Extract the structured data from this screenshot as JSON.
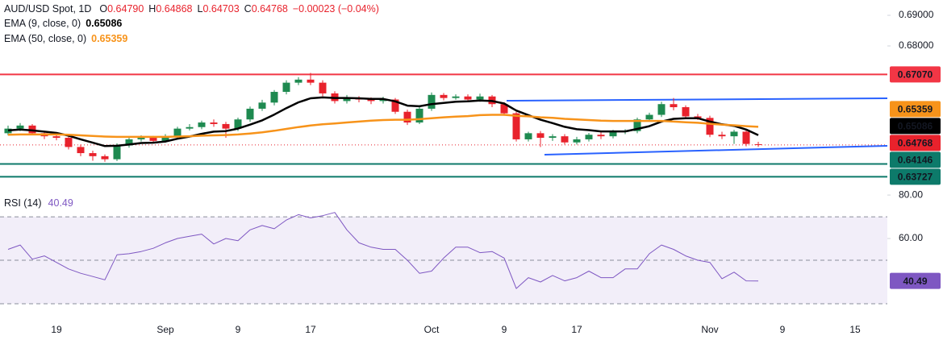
{
  "chart_data": [
    {
      "type": "candlestick",
      "title": "AUD/USD Spot, 1D",
      "header": [
        {
          "key": "O",
          "text": "0.64790"
        },
        {
          "key": "H",
          "text": "0.64868"
        },
        {
          "key": "L",
          "text": "0.64703"
        },
        {
          "key": "C",
          "text": "0.64768"
        }
      ],
      "change": "−0.00023 (−0.04%)",
      "categories": [
        null,
        null,
        null,
        null,
        "19",
        null,
        null,
        null,
        null,
        null,
        null,
        null,
        null,
        "Sep",
        null,
        null,
        null,
        null,
        null,
        "9",
        null,
        null,
        null,
        null,
        null,
        "17",
        null,
        null,
        null,
        null,
        null,
        null,
        null,
        null,
        null,
        "Oct",
        null,
        null,
        null,
        null,
        null,
        "9",
        null,
        null,
        null,
        null,
        null,
        "17",
        null,
        null,
        null,
        null,
        null,
        null,
        null,
        null,
        null,
        null,
        "Nov",
        null,
        null,
        null,
        null,
        null,
        "9",
        null,
        null,
        null,
        null,
        null,
        "15"
      ],
      "open": [
        0.6515,
        0.653,
        0.654,
        0.6515,
        0.6505,
        0.65,
        0.647,
        0.645,
        0.644,
        0.643,
        0.6475,
        0.6495,
        0.65,
        0.649,
        0.6505,
        0.653,
        0.6535,
        0.655,
        0.6545,
        0.653,
        0.656,
        0.6595,
        0.6615,
        0.665,
        0.668,
        0.669,
        0.668,
        0.6645,
        0.662,
        0.663,
        0.6625,
        0.662,
        0.6625,
        0.6585,
        0.655,
        0.6595,
        0.664,
        0.663,
        0.6635,
        0.6625,
        0.6635,
        0.661,
        0.658,
        0.6495,
        0.6515,
        0.65,
        0.6505,
        0.6485,
        0.6495,
        0.651,
        0.6505,
        0.652,
        0.6522,
        0.656,
        0.6575,
        0.661,
        0.66,
        0.657,
        0.6565,
        0.651,
        0.6505,
        0.652,
        0.6479,
        null,
        null,
        null,
        null,
        null,
        null,
        null,
        null
      ],
      "high": [
        0.654,
        0.6548,
        0.6545,
        0.6522,
        0.6512,
        0.6506,
        0.6478,
        0.6458,
        0.6446,
        0.6482,
        0.65,
        0.6508,
        0.6506,
        0.6512,
        0.6536,
        0.6545,
        0.6556,
        0.656,
        0.6552,
        0.6566,
        0.6602,
        0.6624,
        0.6656,
        0.6688,
        0.6698,
        0.6712,
        0.6688,
        0.6652,
        0.664,
        0.6636,
        0.6632,
        0.6634,
        0.663,
        0.6592,
        0.6602,
        0.6648,
        0.6646,
        0.6642,
        0.6642,
        0.6644,
        0.664,
        0.6616,
        0.6585,
        0.652,
        0.6522,
        0.6512,
        0.6512,
        0.6503,
        0.6516,
        0.6518,
        0.6526,
        0.6528,
        0.6566,
        0.6582,
        0.6618,
        0.663,
        0.6606,
        0.6578,
        0.6572,
        0.652,
        0.6526,
        0.6524,
        0.64868,
        null,
        null,
        null,
        null,
        null,
        null,
        null,
        null
      ],
      "low": [
        0.6508,
        0.6522,
        0.6508,
        0.6496,
        0.6492,
        0.6462,
        0.644,
        0.6425,
        0.6422,
        0.6424,
        0.6468,
        0.6488,
        0.6482,
        0.6484,
        0.6498,
        0.6524,
        0.6528,
        0.6536,
        0.65,
        0.6522,
        0.6552,
        0.6588,
        0.6606,
        0.6642,
        0.6672,
        0.6672,
        0.6636,
        0.6612,
        0.6612,
        0.6616,
        0.661,
        0.6612,
        0.6578,
        0.6542,
        0.6545,
        0.6588,
        0.6622,
        0.6624,
        0.6618,
        0.6618,
        0.66,
        0.6572,
        0.6488,
        0.6488,
        0.647,
        0.649,
        0.6478,
        0.6478,
        0.6488,
        0.6496,
        0.6498,
        0.6512,
        0.6515,
        0.6552,
        0.6568,
        0.659,
        0.6562,
        0.6558,
        0.6502,
        0.6496,
        0.648,
        0.6472,
        0.64703,
        null,
        null,
        null,
        null,
        null,
        null,
        null,
        null
      ],
      "close": [
        0.653,
        0.654,
        0.6515,
        0.6505,
        0.65,
        0.647,
        0.645,
        0.644,
        0.643,
        0.6475,
        0.6495,
        0.65,
        0.649,
        0.6505,
        0.653,
        0.6535,
        0.655,
        0.6545,
        0.653,
        0.656,
        0.6595,
        0.6615,
        0.665,
        0.668,
        0.669,
        0.668,
        0.6645,
        0.662,
        0.663,
        0.6625,
        0.662,
        0.6625,
        0.6585,
        0.655,
        0.6595,
        0.664,
        0.663,
        0.6635,
        0.6625,
        0.6635,
        0.661,
        0.658,
        0.6495,
        0.6515,
        0.65,
        0.6505,
        0.6485,
        0.6495,
        0.651,
        0.6505,
        0.652,
        0.6522,
        0.656,
        0.6575,
        0.661,
        0.66,
        0.657,
        0.6565,
        0.651,
        0.6505,
        0.652,
        0.648,
        0.64768,
        null,
        null,
        null,
        null,
        null,
        null,
        null,
        null
      ],
      "last_label": "0.64768",
      "up_color": "#1e8a50",
      "down_color": "#e8222c",
      "series": [
        {
          "name": "EMA (9, close, 0)",
          "color": "#000000",
          "value_label": "0.65086",
          "values": [
            0.6524,
            0.6527,
            0.6524,
            0.652,
            0.6516,
            0.6507,
            0.6495,
            0.6484,
            0.6473,
            0.6474,
            0.6478,
            0.6483,
            0.6484,
            0.6488,
            0.6497,
            0.6504,
            0.6513,
            0.652,
            0.6522,
            0.653,
            0.6543,
            0.6557,
            0.6576,
            0.6597,
            0.6616,
            0.6629,
            0.6632,
            0.663,
            0.663,
            0.6629,
            0.6627,
            0.6627,
            0.6619,
            0.6605,
            0.6603,
            0.661,
            0.6614,
            0.6618,
            0.6619,
            0.6622,
            0.662,
            0.6612,
            0.6589,
            0.6574,
            0.6559,
            0.6548,
            0.6536,
            0.6528,
            0.6525,
            0.6521,
            0.6521,
            0.6521,
            0.6529,
            0.6538,
            0.6553,
            0.6562,
            0.6564,
            0.6564,
            0.6553,
            0.6544,
            0.6539,
            0.6527,
            0.65086,
            null,
            null,
            null,
            null,
            null,
            null,
            null,
            null
          ]
        },
        {
          "name": "EMA (50, close, 0)",
          "color": "#f7931a",
          "value_label": "0.65359",
          "values": [
            0.651,
            0.6511,
            0.6511,
            0.6511,
            0.6511,
            0.651,
            0.6508,
            0.6506,
            0.6504,
            0.6503,
            0.6503,
            0.6503,
            0.6503,
            0.6503,
            0.6504,
            0.6505,
            0.6507,
            0.6508,
            0.6509,
            0.6511,
            0.6514,
            0.6518,
            0.6523,
            0.6529,
            0.6535,
            0.654,
            0.6544,
            0.6547,
            0.655,
            0.6553,
            0.6556,
            0.6558,
            0.6559,
            0.6559,
            0.6561,
            0.6564,
            0.6567,
            0.6569,
            0.6571,
            0.6574,
            0.6575,
            0.6575,
            0.6572,
            0.657,
            0.6567,
            0.6565,
            0.6562,
            0.656,
            0.6558,
            0.6556,
            0.6555,
            0.6555,
            0.6555,
            0.6555,
            0.6555,
            0.6553,
            0.6551,
            0.6549,
            0.6546,
            0.6543,
            0.6541,
            0.6538,
            0.65359,
            null,
            null,
            null,
            null,
            null,
            null,
            null,
            null
          ]
        }
      ],
      "levels": [
        {
          "value": 0.6707,
          "label": "0.67070",
          "color": "#f23645"
        },
        {
          "value": 0.64146,
          "label": "0.64146",
          "color": "#0d7a6a"
        },
        {
          "value": 0.63727,
          "label": "0.63727",
          "color": "#0d7a6a"
        }
      ],
      "ylim": [
        0.6337,
        0.695
      ],
      "yticks": [
        {
          "value": 0.69,
          "label": "0.69000"
        },
        {
          "value": 0.68,
          "label": "0.68000"
        }
      ]
    },
    {
      "type": "line",
      "series": [
        {
          "name": "RSI (14)",
          "color": "#7e57c2",
          "value_label": "40.49",
          "values": [
            55.0,
            57.0,
            50.5,
            52.0,
            49.0,
            46.0,
            44.0,
            42.5,
            41.0,
            52.5,
            53.0,
            54.0,
            55.5,
            58.0,
            60.0,
            61.0,
            62.0,
            57.5,
            60.0,
            59.0,
            64.0,
            66.0,
            64.5,
            68.5,
            71.0,
            69.5,
            70.5,
            72.0,
            64.0,
            58.0,
            56.0,
            55.0,
            55.0,
            50.0,
            44.0,
            45.0,
            51.0,
            56.0,
            56.0,
            53.5,
            54.0,
            51.0,
            37.0,
            42.0,
            40.0,
            43.0,
            40.5,
            42.0,
            45.0,
            42.0,
            42.0,
            46.0,
            46.0,
            53.0,
            57.0,
            55.0,
            52.0,
            50.0,
            49.0,
            41.5,
            44.5,
            40.5,
            40.49,
            null,
            null,
            null,
            null,
            null,
            null,
            null,
            null
          ]
        }
      ],
      "band_levels": [
        70,
        50,
        30
      ],
      "ylim": [
        22.2,
        83.0
      ],
      "yticks": [
        {
          "value": 80,
          "label": "80.00"
        },
        {
          "value": 60,
          "label": "60.00"
        }
      ]
    }
  ]
}
